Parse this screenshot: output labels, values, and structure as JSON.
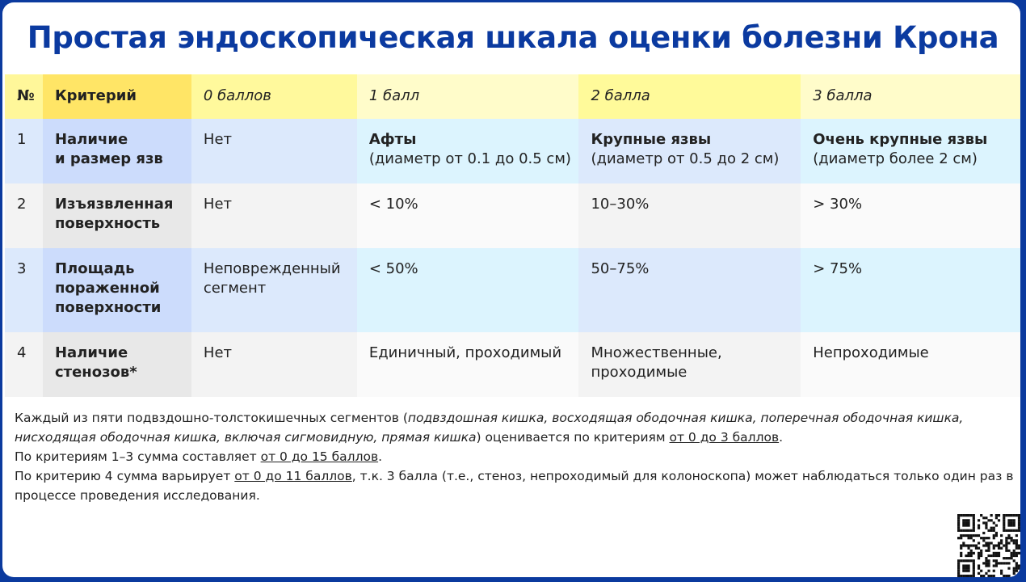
{
  "title": "Простая эндоскопическая шкала оценки болезни Крона",
  "colors": {
    "frame": "#0b3a9e",
    "title": "#0b3aa0",
    "header": "#ffe566",
    "row_blue": "#dce9fc",
    "row_gray": "#f3f3f3"
  },
  "table": {
    "headers": [
      "№",
      "Критерий",
      "0 баллов",
      "1 балл",
      "2 балла",
      "3 балла"
    ],
    "rows": [
      {
        "num": "1",
        "criterion": "Наличие\nи размер язв",
        "s0": "Нет",
        "s1_bold": "Афты",
        "s1": "(диаметр от 0.1 до 0.5 см)",
        "s2_bold": "Крупные язвы",
        "s2": "(диаметр от 0.5 до 2 см)",
        "s3_bold": "Очень крупные язвы",
        "s3": "(диаметр более 2 см)"
      },
      {
        "num": "2",
        "criterion": "Изъязвленная поверхность",
        "s0": "Нет",
        "s1": "< 10%",
        "s2": "10–30%",
        "s3": "> 30%"
      },
      {
        "num": "3",
        "criterion": "Площадь пораженной поверхности",
        "s0": "Неповрежденный сегмент",
        "s1": "< 50%",
        "s2": "50–75%",
        "s3": "> 75%"
      },
      {
        "num": "4",
        "criterion": "Наличие стенозов*",
        "s0": "Нет",
        "s1": "Единичный, проходимый",
        "s2": "Множественные, проходимые",
        "s3": "Непроходимые"
      }
    ]
  },
  "notes": {
    "p1_a": "Каждый из пяти подвздошно-толстокишечных сегментов (",
    "p1_i": "подвздошная кишка, восходящая ободочная кишка, поперечная ободочная кишка, нисходящая ободочная кишка, включая сигмовидную, прямая кишка",
    "p1_b": ") оценивается по критериям ",
    "p1_u": "от 0 до 3 баллов",
    "p1_c": ".",
    "p2_a": "По критериям 1–3 сумма составляет ",
    "p2_u": "от 0 до 15 баллов",
    "p2_c": ".",
    "p3_a": "По критерию 4 сумма варьирует ",
    "p3_u": "от 0 до 11 баллов",
    "p3_b": ", т.к. 3 балла (т.е., стеноз, непроходимый для колоноскопа) может наблюдаться только один раз в процессе проведения исследования."
  },
  "qr_icon": "qr-code-icon"
}
